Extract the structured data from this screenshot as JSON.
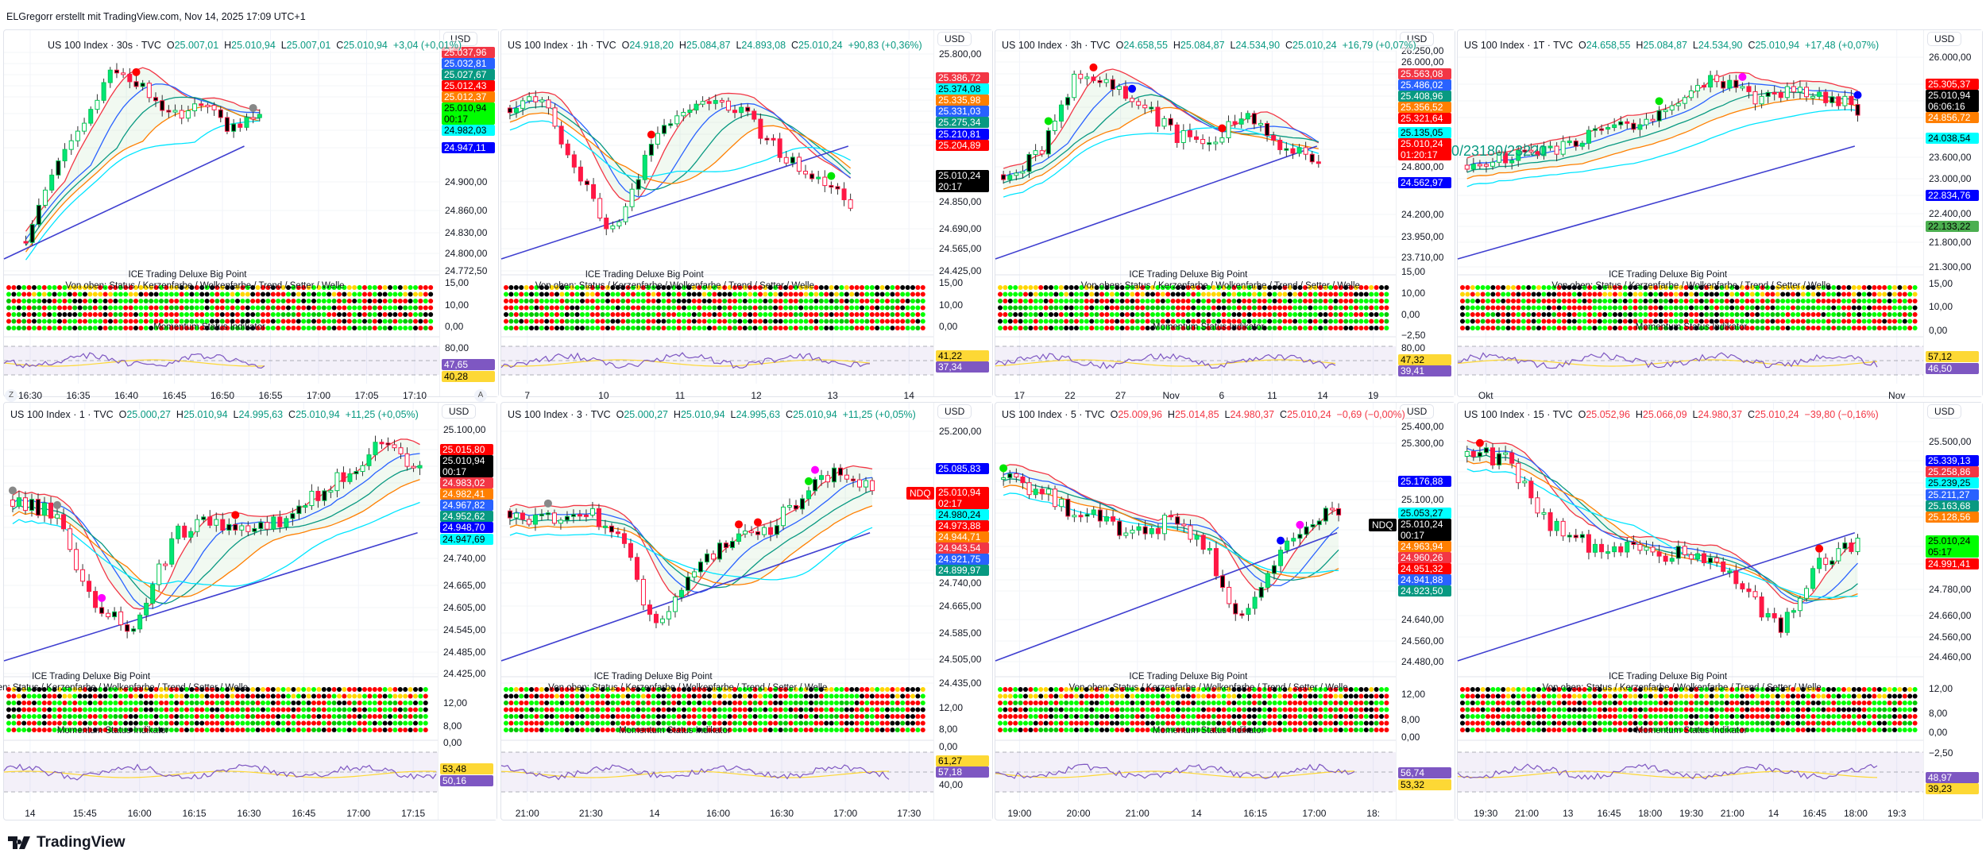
{
  "watermark": "ELGregorr erstellt mit TradingView.com, Nov 14, 2025 17:09 UTC+1",
  "brand": "TradingView",
  "colors": {
    "up": "#089981",
    "down": "#f23645"
  },
  "panels": [
    {
      "symbol": "US 100 Index · 30s · TVC",
      "o": "25.007,01",
      "h": "25.010,94",
      "l": "25.007,01",
      "c": "25.010,94",
      "chg": "+3,04 (+0,01%)",
      "dir": "up",
      "currency": "USD",
      "axis": [
        {
          "t": "tag",
          "v": "25.037,96",
          "bg": "#f23645",
          "fg": "#fff"
        },
        {
          "t": "tag",
          "v": "25.032,81",
          "bg": "#2962ff",
          "fg": "#fff"
        },
        {
          "t": "tag",
          "v": "25.027,67",
          "bg": "#089981",
          "fg": "#fff"
        },
        {
          "t": "tag",
          "v": "25.012,43",
          "bg": "#ff0000",
          "fg": "#fff"
        },
        {
          "t": "tag",
          "v": "25.012,37",
          "bg": "#ff7f00",
          "fg": "#fff"
        },
        {
          "t": "tag",
          "v": "25.010,94",
          "sub": "00:17",
          "bg": "#00ff00",
          "fg": "#000"
        },
        {
          "t": "tag",
          "v": "24.982,03",
          "bg": "#00ffff",
          "fg": "#000"
        },
        {
          "t": "tag",
          "v": "24.947,11",
          "bg": "#0000ff",
          "fg": "#fff"
        },
        {
          "t": "tick",
          "v": "24.900,00"
        },
        {
          "t": "tick",
          "v": "24.860,00"
        },
        {
          "t": "tick",
          "v": "24.830,00"
        },
        {
          "t": "tick",
          "v": "24.800,00"
        },
        {
          "t": "tick",
          "v": "24.772,50"
        }
      ],
      "ind_ticks": [
        "15,00",
        "10,00",
        "0,00"
      ],
      "rsi_axis": [
        {
          "t": "tick",
          "v": "80,00"
        },
        {
          "t": "tag",
          "v": "47,65",
          "bg": "#7e57c2",
          "fg": "#fff"
        },
        {
          "t": "tag",
          "v": "40,28",
          "bg": "#fdd835",
          "fg": "#000"
        }
      ],
      "ind_title": "ICE Trading Deluxe Big Point",
      "ind_subtitle": "Von oben: Status / Kerzenfarbe / Wolkenfarbe / Trend / Setter / Welle",
      "ind_footer": "Momentum Status Indikator",
      "time_ticks": [
        "16:30",
        "16:35",
        "16:40",
        "16:45",
        "16:50",
        "16:55",
        "17:00",
        "17:05",
        "17:10"
      ],
      "scale_buttons": [
        "Z",
        "A"
      ]
    },
    {
      "symbol": "US 100 Index · 1h · TVC",
      "o": "24.918,20",
      "h": "25.084,87",
      "l": "24.893,08",
      "c": "25.010,24",
      "chg": "+90,83 (+0,36%)",
      "dir": "up",
      "currency": "USD",
      "axis": [
        {
          "t": "tick",
          "v": "25.800,00"
        },
        {
          "t": "tag",
          "v": "25.386,72",
          "bg": "#f23645",
          "fg": "#fff"
        },
        {
          "t": "tag",
          "v": "25.374,08",
          "bg": "#00ffff",
          "fg": "#000"
        },
        {
          "t": "tag",
          "v": "25.335,98",
          "bg": "#ff7f00",
          "fg": "#fff"
        },
        {
          "t": "tag",
          "v": "25.331,03",
          "bg": "#2962ff",
          "fg": "#fff"
        },
        {
          "t": "tag",
          "v": "25.275,34",
          "bg": "#089981",
          "fg": "#fff"
        },
        {
          "t": "tag",
          "v": "25.210,81",
          "bg": "#0000ff",
          "fg": "#fff"
        },
        {
          "t": "tag",
          "v": "25.204,89",
          "bg": "#ff0000",
          "fg": "#fff"
        },
        {
          "t": "tag",
          "v": "25.010,24",
          "sub": "20:17",
          "bg": "#000000",
          "fg": "#fff"
        },
        {
          "t": "tick",
          "v": "24.850,00"
        },
        {
          "t": "tick",
          "v": "24.690,00"
        },
        {
          "t": "tick",
          "v": "24.565,00"
        },
        {
          "t": "tick",
          "v": "24.425,00"
        }
      ],
      "ind_ticks": [
        "15,00",
        "10,00",
        "0,00"
      ],
      "rsi_axis": [
        {
          "t": "tag",
          "v": "41,22",
          "bg": "#fdd835",
          "fg": "#000"
        },
        {
          "t": "tag",
          "v": "37,34",
          "bg": "#7e57c2",
          "fg": "#fff"
        }
      ],
      "ind_title": "ICE Trading Deluxe Big Point",
      "ind_subtitle": "Von oben: Status / Kerzenfarbe / Wolkenfarbe / Trend / Setter / Welle",
      "time_ticks": [
        "7",
        "10",
        "11",
        "12",
        "13",
        "14"
      ]
    },
    {
      "symbol": "US 100 Index · 3h · TVC",
      "o": "24.658,55",
      "h": "25.084,87",
      "l": "24.534,90",
      "c": "25.010,24",
      "chg": "+16,79 (+0,07%)",
      "dir": "up",
      "currency": "USD",
      "axis": [
        {
          "t": "tick",
          "v": "26.250,00"
        },
        {
          "t": "tick",
          "v": "26.000,00"
        },
        {
          "t": "tag",
          "v": "25.563,08",
          "bg": "#f23645",
          "fg": "#fff"
        },
        {
          "t": "tag",
          "v": "25.486,02",
          "bg": "#2962ff",
          "fg": "#fff"
        },
        {
          "t": "tag",
          "v": "25.408,96",
          "bg": "#089981",
          "fg": "#fff"
        },
        {
          "t": "tag",
          "v": "25.356,52",
          "bg": "#ff7f00",
          "fg": "#fff"
        },
        {
          "t": "tag",
          "v": "25.321,64",
          "bg": "#ff0000",
          "fg": "#fff"
        },
        {
          "t": "tag",
          "v": "25.135,05",
          "bg": "#00ffff",
          "fg": "#000"
        },
        {
          "t": "tag",
          "v": "25.010,24",
          "sub": "01:20:17",
          "bg": "#ff0000",
          "fg": "#fff"
        },
        {
          "t": "tick",
          "v": "24.800,00"
        },
        {
          "t": "tag",
          "v": "24.562,97",
          "bg": "#0000ff",
          "fg": "#fff"
        },
        {
          "t": "tick",
          "v": "24.200,00"
        },
        {
          "t": "tick",
          "v": "23.950,00"
        },
        {
          "t": "tick",
          "v": "23.710,00"
        }
      ],
      "ind_ticks": [
        "15,00",
        "10,00",
        "0,00",
        "−2,50"
      ],
      "rsi_axis": [
        {
          "t": "tick",
          "v": "80,00"
        },
        {
          "t": "tag",
          "v": "47,32",
          "bg": "#fdd835",
          "fg": "#000"
        },
        {
          "t": "tag",
          "v": "39,41",
          "bg": "#7e57c2",
          "fg": "#fff"
        }
      ],
      "ind_title": "ICE Trading Deluxe Big Point",
      "ind_subtitle": "Von oben: Status / Kerzenfarbe / Wolkenfarbe / Trend / Setter / Welle",
      "ind_footer": "Momentum Status Indikator",
      "time_ticks": [
        "17",
        "22",
        "27",
        "Nov",
        "6",
        "11",
        "14",
        "19"
      ]
    },
    {
      "symbol": "US 100 Index · 1T · TVC",
      "o": "24.658,55",
      "h": "25.084,87",
      "l": "24.534,90",
      "c": "25.010,94",
      "chg": "+17,48 (+0,07%)",
      "dir": "up",
      "currency": "USD",
      "axis": [
        {
          "t": "tick",
          "v": "26.000,00"
        },
        {
          "t": "tag",
          "v": "25.305,37",
          "bg": "#ff0000",
          "fg": "#fff"
        },
        {
          "t": "tag",
          "v": "25.010,94",
          "sub": "06:06:16",
          "bg": "#000000",
          "fg": "#fff"
        },
        {
          "t": "tag",
          "v": "24.856,72",
          "bg": "#ff7f00",
          "fg": "#fff"
        },
        {
          "t": "tag",
          "v": "24.038,54",
          "bg": "#00ffff",
          "fg": "#000"
        },
        {
          "t": "tick",
          "v": "23.600,00"
        },
        {
          "t": "tick",
          "v": "23.000,00"
        },
        {
          "t": "tag",
          "v": "22.834,76",
          "bg": "#0000ff",
          "fg": "#fff"
        },
        {
          "t": "tick",
          "v": "22.400,00"
        },
        {
          "t": "tag",
          "v": "22.133,22",
          "bg": "#4caf50",
          "fg": "#000"
        },
        {
          "t": "tick",
          "v": "21.800,00"
        },
        {
          "t": "tick",
          "v": "21.300,00"
        }
      ],
      "ind_ticks": [
        "15,00",
        "10,00",
        "0,00"
      ],
      "rsi_axis": [
        {
          "t": "tag",
          "v": "57,12",
          "bg": "#fdd835",
          "fg": "#000"
        },
        {
          "t": "tag",
          "v": "46,50",
          "bg": "#7e57c2",
          "fg": "#fff"
        }
      ],
      "ind_title": "ICE Trading Deluxe Big Point",
      "ind_subtitle": "Von oben: Status / Kerzenfarbe / Wolkenfarbe / Trend / Setter / Welle",
      "ind_footer": "Momentum Status Indikator",
      "extra_text": "0/23180/23220",
      "time_ticks": [
        "Okt",
        "Nov"
      ]
    },
    {
      "symbol": "US 100 Index · 1 · TVC",
      "o": "25.000,27",
      "h": "25.010,94",
      "l": "24.995,63",
      "c": "25.010,94",
      "chg": "+11,25 (+0,05%)",
      "dir": "up",
      "currency": "USD",
      "axis": [
        {
          "t": "tick",
          "v": "25.100,00"
        },
        {
          "t": "tag",
          "v": "25.015,80",
          "bg": "#ff0000",
          "fg": "#fff"
        },
        {
          "t": "tag",
          "v": "25.010,94",
          "sub": "00:17",
          "bg": "#000000",
          "fg": "#fff"
        },
        {
          "t": "tag",
          "v": "24.983,02",
          "bg": "#f23645",
          "fg": "#fff"
        },
        {
          "t": "tag",
          "v": "24.982,41",
          "bg": "#ff7f00",
          "fg": "#fff"
        },
        {
          "t": "tag",
          "v": "24.967,82",
          "bg": "#2962ff",
          "fg": "#fff"
        },
        {
          "t": "tag",
          "v": "24.952,62",
          "bg": "#089981",
          "fg": "#fff"
        },
        {
          "t": "tag",
          "v": "24.948,70",
          "bg": "#0000ff",
          "fg": "#fff"
        },
        {
          "t": "tag",
          "v": "24.947,69",
          "bg": "#00ffff",
          "fg": "#000"
        },
        {
          "t": "tick",
          "v": "24.740,00"
        },
        {
          "t": "tick",
          "v": "24.665,00"
        },
        {
          "t": "tick",
          "v": "24.605,00"
        },
        {
          "t": "tick",
          "v": "24.545,00"
        },
        {
          "t": "tick",
          "v": "24.485,00"
        },
        {
          "t": "tick",
          "v": "24.425,00"
        }
      ],
      "ind_ticks": [
        "12,00",
        "8,00",
        "0,00"
      ],
      "rsi_axis": [
        {
          "t": "tag",
          "v": "53,48",
          "bg": "#fdd835",
          "fg": "#000"
        },
        {
          "t": "tag",
          "v": "50,16",
          "bg": "#7e57c2",
          "fg": "#fff"
        }
      ],
      "ind_title": "ICE Trading Deluxe Big Point",
      "ind_subtitle": "Von oben: Status / Kerzenfarbe / Wolkenfarbe / Trend / Setter / Welle",
      "ind_footer": "Momentum Status Indikator",
      "time_ticks": [
        "14",
        "15:45",
        "16:00",
        "16:15",
        "16:30",
        "16:45",
        "17:00",
        "17:15"
      ]
    },
    {
      "symbol": "US 100 Index · 3 · TVC",
      "o": "25.000,27",
      "h": "25.010,94",
      "l": "24.995,63",
      "c": "25.010,94",
      "chg": "+11,25 (+0,05%)",
      "dir": "up",
      "currency": "USD",
      "axis": [
        {
          "t": "tick",
          "v": "25.200,00"
        },
        {
          "t": "tag",
          "v": "25.085,83",
          "bg": "#0000ff",
          "fg": "#fff"
        },
        {
          "t": "tag",
          "v": "25.010,94",
          "sub": "02:17",
          "bg": "#ff0000",
          "fg": "#fff"
        },
        {
          "t": "tag",
          "v": "24.980,24",
          "bg": "#00ffff",
          "fg": "#000"
        },
        {
          "t": "tag",
          "v": "24.973,88",
          "bg": "#ff0000",
          "fg": "#fff"
        },
        {
          "t": "tag",
          "v": "24.944,71",
          "bg": "#ff7f00",
          "fg": "#fff"
        },
        {
          "t": "tag",
          "v": "24.943,54",
          "bg": "#f23645",
          "fg": "#fff"
        },
        {
          "t": "tag",
          "v": "24.921,75",
          "bg": "#2962ff",
          "fg": "#fff"
        },
        {
          "t": "tag",
          "v": "24.899,97",
          "bg": "#089981",
          "fg": "#fff"
        },
        {
          "t": "tick",
          "v": "24.740,00"
        },
        {
          "t": "tick",
          "v": "24.665,00"
        },
        {
          "t": "tick",
          "v": "24.585,00"
        },
        {
          "t": "tick",
          "v": "24.505,00"
        },
        {
          "t": "tick",
          "v": "24.435,00"
        }
      ],
      "badge": {
        "text": "NDQ",
        "bg": "#ff0000"
      },
      "ind_ticks": [
        "12,00",
        "8,00",
        "0,00"
      ],
      "rsi_axis": [
        {
          "t": "tag",
          "v": "61,27",
          "bg": "#fdd835",
          "fg": "#000"
        },
        {
          "t": "tag",
          "v": "57,18",
          "bg": "#7e57c2",
          "fg": "#fff"
        },
        {
          "t": "tick",
          "v": "40,00"
        }
      ],
      "ind_title": "ICE Trading Deluxe Big Point",
      "ind_subtitle": "Von oben: Status / Kerzenfarbe / Wolkenfarbe / Trend / Setter / Welle",
      "ind_footer": "Momentum Status Indikator",
      "time_ticks": [
        "21:00",
        "21:30",
        "14",
        "16:00",
        "16:30",
        "17:00",
        "17:30"
      ]
    },
    {
      "symbol": "US 100 Index · 5 · TVC",
      "o": "25.009,96",
      "h": "25.014,85",
      "l": "24.980,37",
      "c": "25.010,24",
      "chg": "−0,69 (−0,00%)",
      "dir": "down",
      "currency": "USD",
      "axis": [
        {
          "t": "tick",
          "v": "25.400,00"
        },
        {
          "t": "tick",
          "v": "25.300,00"
        },
        {
          "t": "tag",
          "v": "25.176,88",
          "bg": "#0000ff",
          "fg": "#fff"
        },
        {
          "t": "tick",
          "v": "25.100,00"
        },
        {
          "t": "tag",
          "v": "25.053,27",
          "bg": "#00ffff",
          "fg": "#000"
        },
        {
          "t": "tag",
          "v": "25.010,24",
          "sub": "00:17",
          "bg": "#000000",
          "fg": "#fff"
        },
        {
          "t": "tag",
          "v": "24.963,94",
          "bg": "#ff7f00",
          "fg": "#fff"
        },
        {
          "t": "tag",
          "v": "24.960,26",
          "bg": "#f23645",
          "fg": "#fff"
        },
        {
          "t": "tag",
          "v": "24.951,32",
          "bg": "#ff0000",
          "fg": "#fff"
        },
        {
          "t": "tag",
          "v": "24.941,88",
          "bg": "#2962ff",
          "fg": "#fff"
        },
        {
          "t": "tag",
          "v": "24.923,50",
          "bg": "#089981",
          "fg": "#fff"
        },
        {
          "t": "tick",
          "v": "24.640,00"
        },
        {
          "t": "tick",
          "v": "24.560,00"
        },
        {
          "t": "tick",
          "v": "24.480,00"
        }
      ],
      "badge": {
        "text": "NDQ",
        "bg": "#000000"
      },
      "ind_ticks": [
        "12,00",
        "8,00",
        "0,00"
      ],
      "rsi_axis": [
        {
          "t": "tag",
          "v": "56,74",
          "bg": "#7e57c2",
          "fg": "#fff"
        },
        {
          "t": "tag",
          "v": "53,32",
          "bg": "#fdd835",
          "fg": "#000"
        }
      ],
      "ind_title": "ICE Trading Deluxe Big Point",
      "ind_subtitle": "Von oben: Status / Kerzenfarbe / Wolkenfarbe / Trend / Setter / Welle",
      "ind_footer": "Momentum Status Indikator",
      "time_ticks": [
        "19:00",
        "20:00",
        "21:00",
        "14",
        "16:15",
        "17:00",
        "18:"
      ]
    },
    {
      "symbol": "US 100 Index · 15 · TVC",
      "o": "25.052,96",
      "h": "25.066,09",
      "l": "24.980,37",
      "c": "25.010,24",
      "chg": "−39,80 (−0,16%)",
      "dir": "down",
      "currency": "USD",
      "axis": [
        {
          "t": "tick",
          "v": "25.500,00"
        },
        {
          "t": "tag",
          "v": "25.339,13",
          "bg": "#0000ff",
          "fg": "#fff"
        },
        {
          "t": "tag",
          "v": "25.258,86",
          "bg": "#f23645",
          "fg": "#fff"
        },
        {
          "t": "tag",
          "v": "25.239,25",
          "bg": "#00ffff",
          "fg": "#000"
        },
        {
          "t": "tag",
          "v": "25.211,27",
          "bg": "#2962ff",
          "fg": "#fff"
        },
        {
          "t": "tag",
          "v": "25.163,68",
          "bg": "#089981",
          "fg": "#fff"
        },
        {
          "t": "tag",
          "v": "25.128,56",
          "bg": "#ff7f00",
          "fg": "#fff"
        },
        {
          "t": "tag",
          "v": "25.010,24",
          "sub": "05:17",
          "bg": "#00ff00",
          "fg": "#000"
        },
        {
          "t": "tag",
          "v": "24.991,41",
          "bg": "#ff0000",
          "fg": "#fff"
        },
        {
          "t": "tick",
          "v": "24.780,00"
        },
        {
          "t": "tick",
          "v": "24.660,00"
        },
        {
          "t": "tick",
          "v": "24.560,00"
        },
        {
          "t": "tick",
          "v": "24.460,00"
        }
      ],
      "ind_ticks": [
        "12,00",
        "8,00",
        "0,00",
        "−2,50"
      ],
      "rsi_axis": [
        {
          "t": "tag",
          "v": "48,97",
          "bg": "#7e57c2",
          "fg": "#fff"
        },
        {
          "t": "tag",
          "v": "39,23",
          "bg": "#fdd835",
          "fg": "#000"
        }
      ],
      "ind_title": "ICE Trading Deluxe Big Point",
      "ind_subtitle": "Von oben: Status / Kerzenfarbe / Wolkenfarbe / Trend / Setter / Welle",
      "ind_footer": "Momentum Status Indikator",
      "time_ticks": [
        "19:30",
        "21:00",
        "13",
        "16:45",
        "18:00",
        "19:30",
        "21:00",
        "14",
        "16:45",
        "18:00",
        "19:3"
      ]
    }
  ]
}
